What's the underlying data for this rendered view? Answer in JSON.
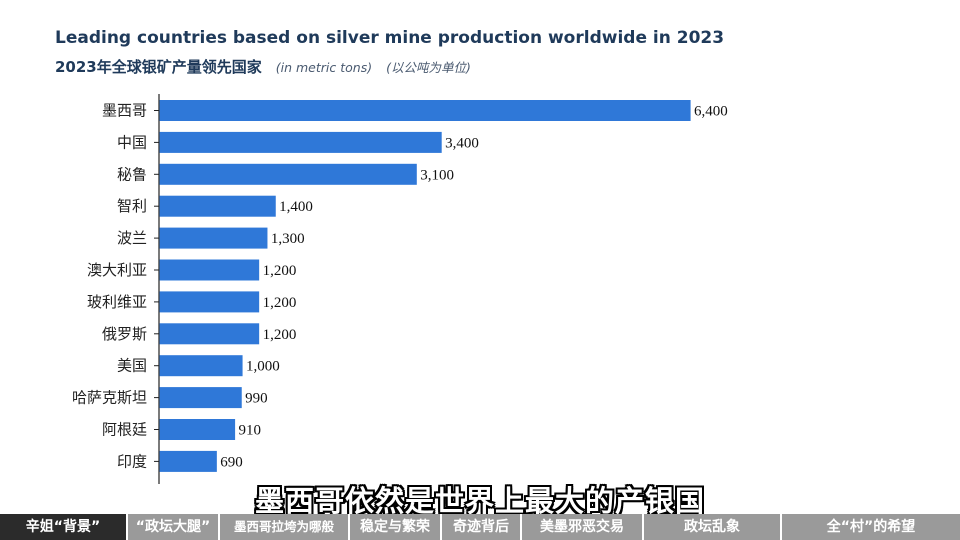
{
  "header": {
    "title_en": "Leading countries based on silver mine production worldwide in 2023",
    "title_cn": "2023年全球银矿产量领先国家",
    "unit_en": "(in metric tons)",
    "unit_cn": "(以公吨为单位)"
  },
  "chart_data": {
    "type": "bar",
    "orientation": "horizontal",
    "title": "Leading countries based on silver mine production worldwide in 2023",
    "categories": [
      "墨西哥",
      "中国",
      "秘鲁",
      "智利",
      "波兰",
      "澳大利亚",
      "玻利维亚",
      "俄罗斯",
      "美国",
      "哈萨克斯坦",
      "阿根廷",
      "印度"
    ],
    "values": [
      6400,
      3400,
      3100,
      1400,
      1300,
      1200,
      1200,
      1200,
      1000,
      990,
      910,
      690
    ],
    "value_labels": [
      "6,400",
      "3,400",
      "3,100",
      "1,400",
      "1,300",
      "1,200",
      "1,200",
      "1,200",
      "1,000",
      "990",
      "910",
      "690"
    ],
    "bar_color": "#2f78d8",
    "xlim": [
      0,
      6400
    ],
    "grid": false
  },
  "subtitle": "墨西哥依然是世界上最大的产银国",
  "nav": {
    "items": [
      {
        "label": "辛姐“背景”",
        "active": true
      },
      {
        "label": "“政坛大腿”",
        "active": false
      },
      {
        "label": "墨西哥拉垮为哪般",
        "active": false
      },
      {
        "label": "稳定与繁荣",
        "active": false
      },
      {
        "label": "奇迹背后",
        "active": false
      },
      {
        "label": "美墨邪恶交易",
        "active": false
      },
      {
        "label": "政坛乱象",
        "active": false
      },
      {
        "label": "全“村”的希望",
        "active": false
      }
    ]
  }
}
